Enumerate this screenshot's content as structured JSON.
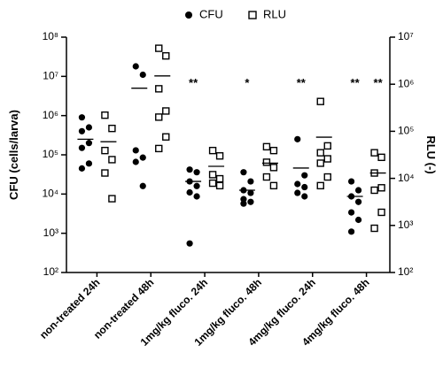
{
  "chart_data": {
    "type": "scatter",
    "categories": [
      "non-treated 24h",
      "non-treated 48h",
      "1mg/kg fluco. 24h",
      "1mg/kg fluco. 48h",
      "4mg/kg fluco. 24h",
      "4mg/kg fluco. 48h"
    ],
    "y_label": "CFU (cells/larva)",
    "y2_label": "RLU (-)",
    "log_scale": true,
    "ylim": [
      100,
      100000000
    ],
    "yticks": [
      {
        "value": 100,
        "label": "10²"
      },
      {
        "value": 1000,
        "label": "10³"
      },
      {
        "value": 10000,
        "label": "10⁴"
      },
      {
        "value": 100000,
        "label": "10⁵"
      },
      {
        "value": 1000000,
        "label": "10⁶"
      },
      {
        "value": 10000000,
        "label": "10⁷"
      },
      {
        "value": 100000000,
        "label": "10⁸"
      }
    ],
    "y2lim": [
      100,
      10000000
    ],
    "y2ticks": [
      {
        "value": 100,
        "label": "10²"
      },
      {
        "value": 1000,
        "label": "10³"
      },
      {
        "value": 10000,
        "label": "10⁴"
      },
      {
        "value": 100000,
        "label": "10⁵"
      },
      {
        "value": 1000000,
        "label": "10⁶"
      },
      {
        "value": 10000000,
        "label": "10⁷"
      }
    ],
    "legend": "top",
    "series": [
      {
        "name": "CFU",
        "marker": "filled-circle",
        "color": "#000000",
        "axis": "y",
        "values": [
          [
            900000,
            500000,
            400000,
            200000,
            150000,
            60000,
            45000
          ],
          [
            18000000,
            11000000,
            130000,
            85000,
            66000,
            16000
          ],
          [
            42000,
            36000,
            21000,
            16000,
            11000,
            8700,
            550
          ],
          [
            36000,
            21000,
            12500,
            10700,
            7400,
            6300,
            5700
          ],
          [
            250000,
            30000,
            18000,
            15000,
            10700,
            8700
          ],
          [
            21000,
            12500,
            8700,
            6300,
            3400,
            2200,
            1100
          ]
        ],
        "means": [
          250000,
          5000000,
          21000,
          12500,
          46000,
          8700
        ],
        "stars": [
          null,
          null,
          "**",
          "*",
          "**",
          "**"
        ]
      },
      {
        "name": "RLU",
        "marker": "open-square",
        "color": "#000000",
        "axis": "y2",
        "values": [
          [
            220000,
            115000,
            39000,
            25000,
            13000,
            3700
          ],
          [
            5800000,
            4000000,
            800000,
            270000,
            200000,
            76000,
            43000
          ],
          [
            39000,
            30000,
            12000,
            9800,
            7900,
            7000
          ],
          [
            47000,
            39000,
            22000,
            17000,
            10700,
            7000
          ],
          [
            430000,
            49000,
            35000,
            26000,
            21000,
            10700,
            7000
          ],
          [
            35000,
            28000,
            13000,
            6300,
            5600,
            1900,
            870
          ]
        ],
        "means": [
          60000,
          1500000,
          18000,
          21000,
          75000,
          13000
        ],
        "stars": [
          null,
          null,
          null,
          null,
          null,
          "**"
        ]
      }
    ]
  }
}
